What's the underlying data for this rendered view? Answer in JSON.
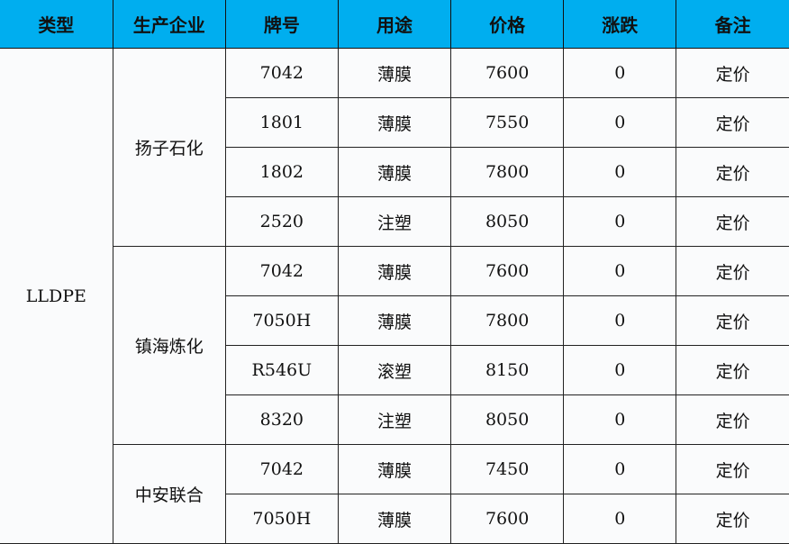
{
  "header": [
    "类型",
    "生产企业",
    "牌号",
    "用途",
    "价格",
    "涨跌",
    "备注"
  ],
  "type": "LLDPE",
  "groups": [
    {
      "company": "扬子石化",
      "rows": [
        {
          "grade": "7042",
          "use": "薄膜",
          "price": "7600",
          "change": "0",
          "note": "定价"
        },
        {
          "grade": "1801",
          "use": "薄膜",
          "price": "7550",
          "change": "0",
          "note": "定价"
        },
        {
          "grade": "1802",
          "use": "薄膜",
          "price": "7800",
          "change": "0",
          "note": "定价"
        },
        {
          "grade": "2520",
          "use": "注塑",
          "price": "8050",
          "change": "0",
          "note": "定价"
        }
      ]
    },
    {
      "company": "镇海炼化",
      "rows": [
        {
          "grade": "7042",
          "use": "薄膜",
          "price": "7600",
          "change": "0",
          "note": "定价"
        },
        {
          "grade": "7050H",
          "use": "薄膜",
          "price": "7800",
          "change": "0",
          "note": "定价"
        },
        {
          "grade": "R546U",
          "use": "滚塑",
          "price": "8150",
          "change": "0",
          "note": "定价"
        },
        {
          "grade": "8320",
          "use": "注塑",
          "price": "8050",
          "change": "0",
          "note": "定价"
        }
      ]
    },
    {
      "company": "中安联合",
      "rows": [
        {
          "grade": "7042",
          "use": "薄膜",
          "price": "7450",
          "change": "0",
          "note": "定价"
        },
        {
          "grade": "7050H",
          "use": "薄膜",
          "price": "7600",
          "change": "0",
          "note": "定价"
        }
      ]
    }
  ],
  "colors": {
    "header_bg": "#00aeef"
  }
}
